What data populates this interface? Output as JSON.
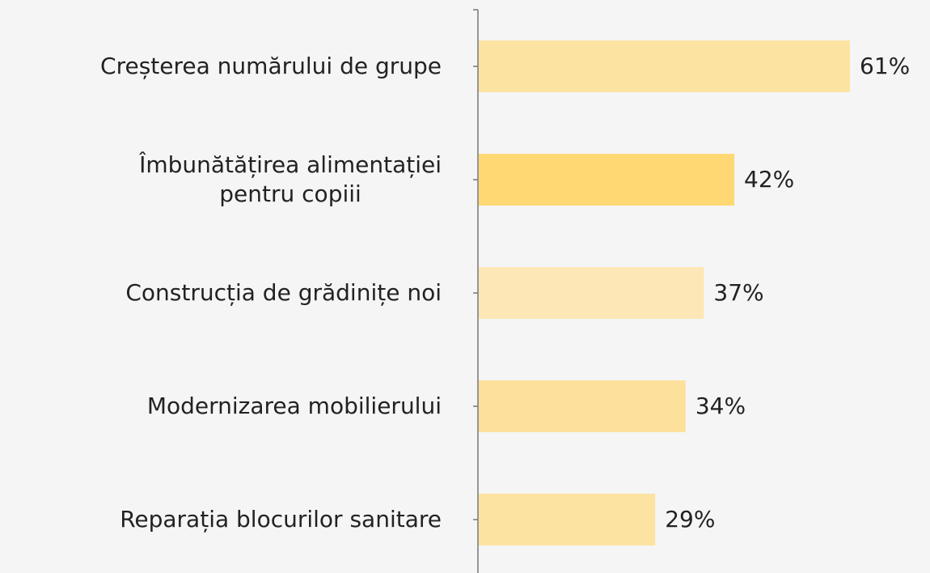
{
  "chart_data": {
    "type": "bar",
    "categories": [
      "Creșterea numărului de grupe",
      "Îmbunătățirea alimentației\npentru copiii",
      "Construcția de grădinițe noi",
      "Modernizarea mobilierului",
      "Reparația blocurilor sanitare"
    ],
    "values": [
      61,
      42,
      37,
      34,
      29
    ],
    "value_labels": [
      "61%",
      "42%",
      "37%",
      "34%",
      "29%"
    ],
    "colors": [
      "#fce3a2",
      "#ffd873",
      "#fde7b6",
      "#fde09b",
      "#fde3a1"
    ]
  }
}
